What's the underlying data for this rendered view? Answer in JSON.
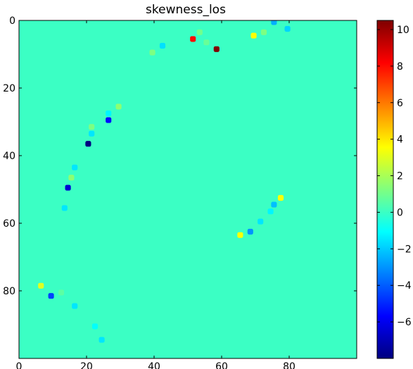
{
  "chart_data": {
    "type": "heatmap",
    "title": "skewness_los",
    "xlabel": "",
    "ylabel": "",
    "background_value": 0,
    "grid_size": [
      100,
      100
    ],
    "xlim": [
      0,
      100
    ],
    "ylim": [
      100,
      0
    ],
    "x_ticks": [
      0,
      20,
      40,
      60,
      80
    ],
    "y_ticks": [
      0,
      20,
      40,
      60,
      80
    ],
    "colormap": "jet",
    "colorbar": {
      "vmin": -8,
      "vmax": 10.5,
      "ticks": [
        10,
        8,
        6,
        4,
        2,
        0,
        -2,
        -4,
        -6
      ]
    },
    "points": [
      {
        "x": 51,
        "y": 5,
        "v": 8.0
      },
      {
        "x": 58,
        "y": 8,
        "v": 10.5
      },
      {
        "x": 42,
        "y": 7,
        "v": -1.6
      },
      {
        "x": 53,
        "y": 3,
        "v": 1.0
      },
      {
        "x": 55,
        "y": 6,
        "v": 0.8
      },
      {
        "x": 69,
        "y": 4,
        "v": 3.5
      },
      {
        "x": 72,
        "y": 3,
        "v": 1.2
      },
      {
        "x": 75,
        "y": 0,
        "v": -2.5
      },
      {
        "x": 79,
        "y": 2,
        "v": -1.8
      },
      {
        "x": 39,
        "y": 9,
        "v": 1.2
      },
      {
        "x": 29,
        "y": 25,
        "v": 1.5
      },
      {
        "x": 26,
        "y": 27,
        "v": -1.2
      },
      {
        "x": 26,
        "y": 29,
        "v": -5.5
      },
      {
        "x": 21,
        "y": 31,
        "v": 1.2
      },
      {
        "x": 21,
        "y": 33,
        "v": -1.5
      },
      {
        "x": 20,
        "y": 36,
        "v": -8.0
      },
      {
        "x": 16,
        "y": 43,
        "v": -1.5
      },
      {
        "x": 15,
        "y": 46,
        "v": 1.5
      },
      {
        "x": 14,
        "y": 49,
        "v": -6.5
      },
      {
        "x": 13,
        "y": 55,
        "v": -1.5
      },
      {
        "x": 77,
        "y": 52,
        "v": 3.5
      },
      {
        "x": 75,
        "y": 54,
        "v": -2.2
      },
      {
        "x": 74,
        "y": 56,
        "v": -1.2
      },
      {
        "x": 71,
        "y": 59,
        "v": -1.5
      },
      {
        "x": 68,
        "y": 62,
        "v": -3.0
      },
      {
        "x": 65,
        "y": 63,
        "v": 3.5
      },
      {
        "x": 6,
        "y": 78,
        "v": 3.0
      },
      {
        "x": 9,
        "y": 81,
        "v": -4.5
      },
      {
        "x": 16,
        "y": 84,
        "v": -1.5
      },
      {
        "x": 12,
        "y": 80,
        "v": 0.6
      },
      {
        "x": 22,
        "y": 90,
        "v": -1.0
      },
      {
        "x": 24,
        "y": 94,
        "v": -1.5
      }
    ]
  }
}
